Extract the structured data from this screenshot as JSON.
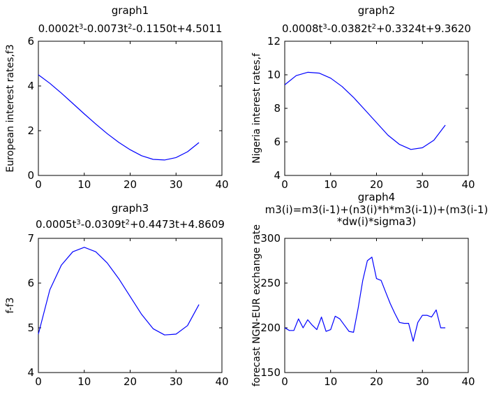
{
  "chart_data": [
    {
      "type": "line",
      "title": "graph1",
      "subtitle": "0.0002t^3-0.0073t^2-0.1150t+4.5011",
      "xlabel": "",
      "ylabel": "European interest rates,f3",
      "xlim": [
        0,
        40
      ],
      "ylim": [
        0,
        6
      ],
      "xticks": [
        0,
        10,
        20,
        30,
        40
      ],
      "yticks": [
        0,
        2,
        4,
        6
      ],
      "line_color": "#0000ff",
      "grid": false,
      "x": [
        0,
        2.5,
        5,
        7.5,
        10,
        12.5,
        15,
        17.5,
        20,
        22.5,
        25,
        27.5,
        30,
        32.5,
        35
      ],
      "values": [
        4.5,
        4.12,
        3.68,
        3.22,
        2.75,
        2.3,
        1.87,
        1.48,
        1.15,
        0.88,
        0.72,
        0.69,
        0.8,
        1.06,
        1.47
      ]
    },
    {
      "type": "line",
      "title": "graph2",
      "subtitle": "0.0008t^3-0.0382t^2+0.3324t+9.3620",
      "xlabel": "",
      "ylabel": "Nigeria interest rates,f",
      "xlim": [
        0,
        40
      ],
      "ylim": [
        4,
        12
      ],
      "xticks": [
        0,
        10,
        20,
        30,
        40
      ],
      "yticks": [
        4,
        6,
        8,
        10,
        12
      ],
      "line_color": "#0000ff",
      "grid": false,
      "x": [
        0,
        2.5,
        5,
        7.5,
        10,
        12.5,
        15,
        17.5,
        20,
        22.5,
        25,
        27.5,
        30,
        32.5,
        35
      ],
      "values": [
        9.4,
        9.95,
        10.15,
        10.1,
        9.8,
        9.3,
        8.65,
        7.9,
        7.15,
        6.4,
        5.85,
        5.55,
        5.65,
        6.1,
        7.0
      ]
    },
    {
      "type": "line",
      "title": "graph3",
      "subtitle": "0.0005t^3-0.0309t^2+0.4473t+4.8609",
      "xlabel": "",
      "ylabel": "f-f3",
      "xlim": [
        0,
        40
      ],
      "ylim": [
        4,
        7
      ],
      "xticks": [
        0,
        10,
        20,
        30,
        40
      ],
      "yticks": [
        4,
        5,
        6,
        7
      ],
      "line_color": "#0000ff",
      "grid": false,
      "x": [
        0,
        2.5,
        5,
        7.5,
        10,
        12.5,
        15,
        17.5,
        20,
        22.5,
        25,
        27.5,
        30,
        32.5,
        35
      ],
      "values": [
        4.86,
        5.85,
        6.4,
        6.7,
        6.8,
        6.7,
        6.45,
        6.1,
        5.7,
        5.3,
        4.98,
        4.84,
        4.86,
        5.05,
        5.52
      ]
    },
    {
      "type": "line",
      "title": "graph4",
      "subtitle": "m3(i)=m3(i-1)+(n3(i)*h*m3(i-1))+(m3(i-1)",
      "subtitle2": "*dw(i)*sigma3)",
      "xlabel": "",
      "ylabel": "forecast NGN-EUR exchange rate",
      "xlim": [
        0,
        40
      ],
      "ylim": [
        150,
        300
      ],
      "xticks": [
        0,
        10,
        20,
        30,
        40
      ],
      "yticks": [
        150,
        200,
        250,
        300
      ],
      "line_color": "#0000ff",
      "grid": false,
      "x": [
        0,
        1,
        2,
        3,
        4,
        5,
        6,
        7,
        8,
        9,
        10,
        11,
        12,
        13,
        14,
        15,
        16,
        17,
        18,
        19,
        20,
        21,
        22,
        23,
        24,
        25,
        26,
        27,
        28,
        29,
        30,
        31,
        32,
        33,
        34,
        35
      ],
      "values": [
        200,
        197,
        197,
        210,
        200,
        209,
        203,
        198,
        212,
        196,
        198,
        213,
        210,
        203,
        196,
        195,
        222,
        253,
        275,
        279,
        255,
        253,
        240,
        227,
        216,
        206,
        205,
        205,
        185,
        206,
        214,
        214,
        212,
        220,
        200,
        200
      ]
    }
  ]
}
